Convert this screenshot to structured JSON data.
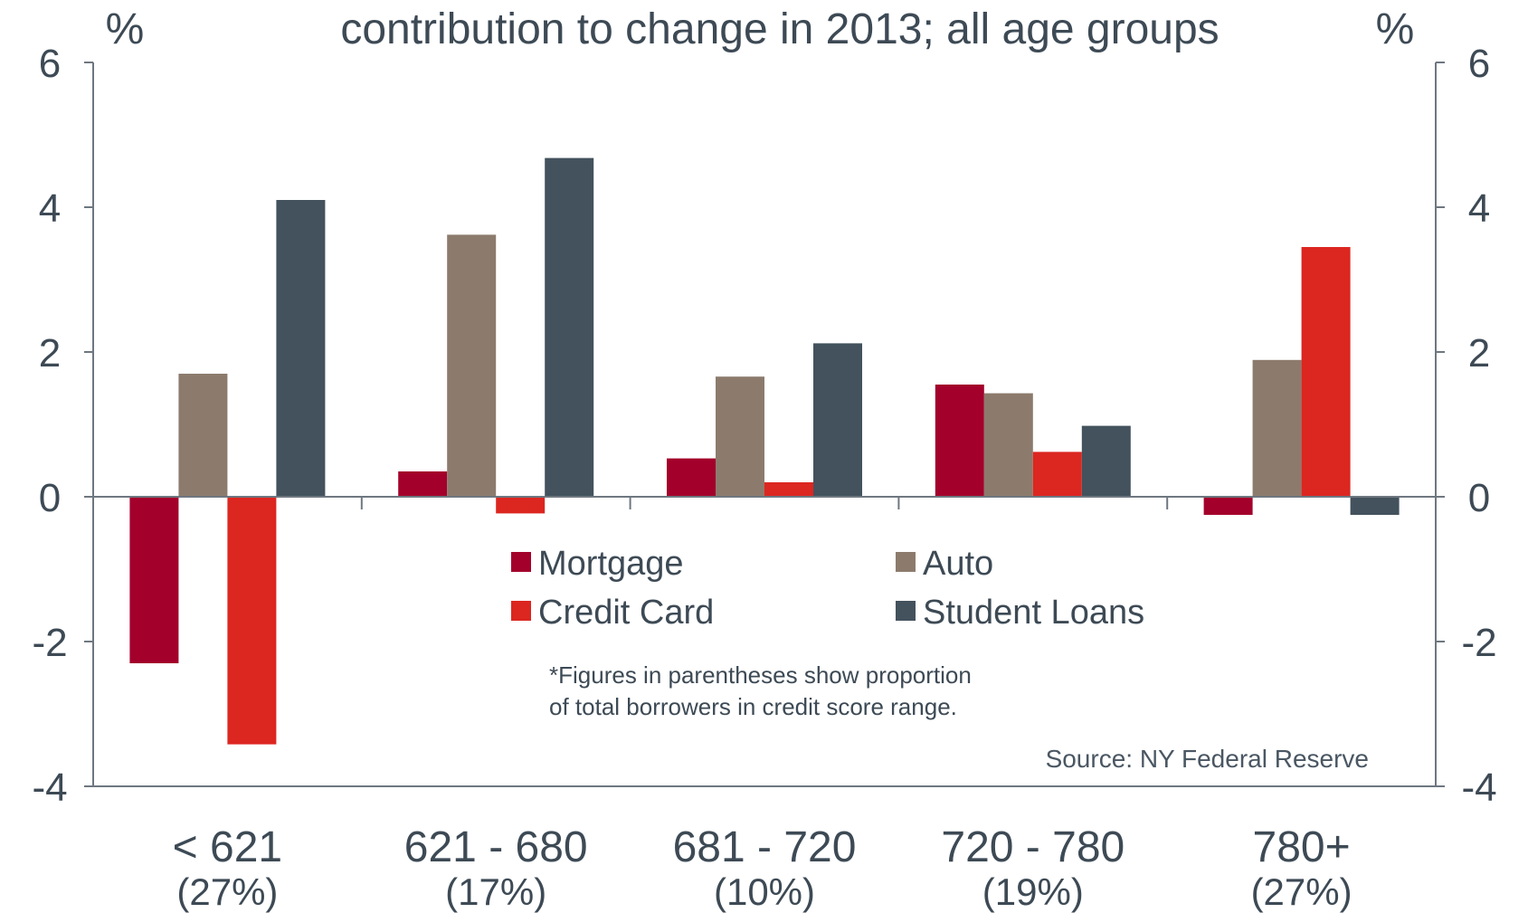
{
  "chart_data": {
    "type": "bar",
    "title": "contribution to change in 2013; all age groups",
    "left_unit": "%",
    "right_unit": "%",
    "ylim": [
      -4,
      6
    ],
    "yticks": [
      6,
      4,
      2,
      0,
      -2,
      -4
    ],
    "grid": false,
    "legend_placement": "center",
    "categories": [
      "< 621",
      "621 - 680",
      "681 - 720",
      "720 - 780",
      "780+"
    ],
    "category_shares": [
      "(27%)",
      "(17%)",
      "(10%)",
      "(19%)",
      "(27%)"
    ],
    "series": [
      {
        "name": "Mortgage",
        "color": "#a3002b",
        "values": [
          -2.3,
          0.35,
          0.53,
          1.55,
          -0.25
        ]
      },
      {
        "name": "Auto",
        "color": "#8c7b6d",
        "values": [
          1.7,
          3.62,
          1.66,
          1.43,
          1.89
        ]
      },
      {
        "name": "Credit Card",
        "color": "#dc2620",
        "values": [
          -3.42,
          -0.23,
          0.2,
          0.62,
          3.45
        ]
      },
      {
        "name": "Student Loans",
        "color": "#43525d",
        "values": [
          4.1,
          4.68,
          2.12,
          0.98,
          -0.25
        ]
      }
    ],
    "note_lines": [
      "*Figures in parentheses show proportion",
      "of total borrowers in credit score range."
    ],
    "source": "Source: NY Federal Reserve"
  }
}
